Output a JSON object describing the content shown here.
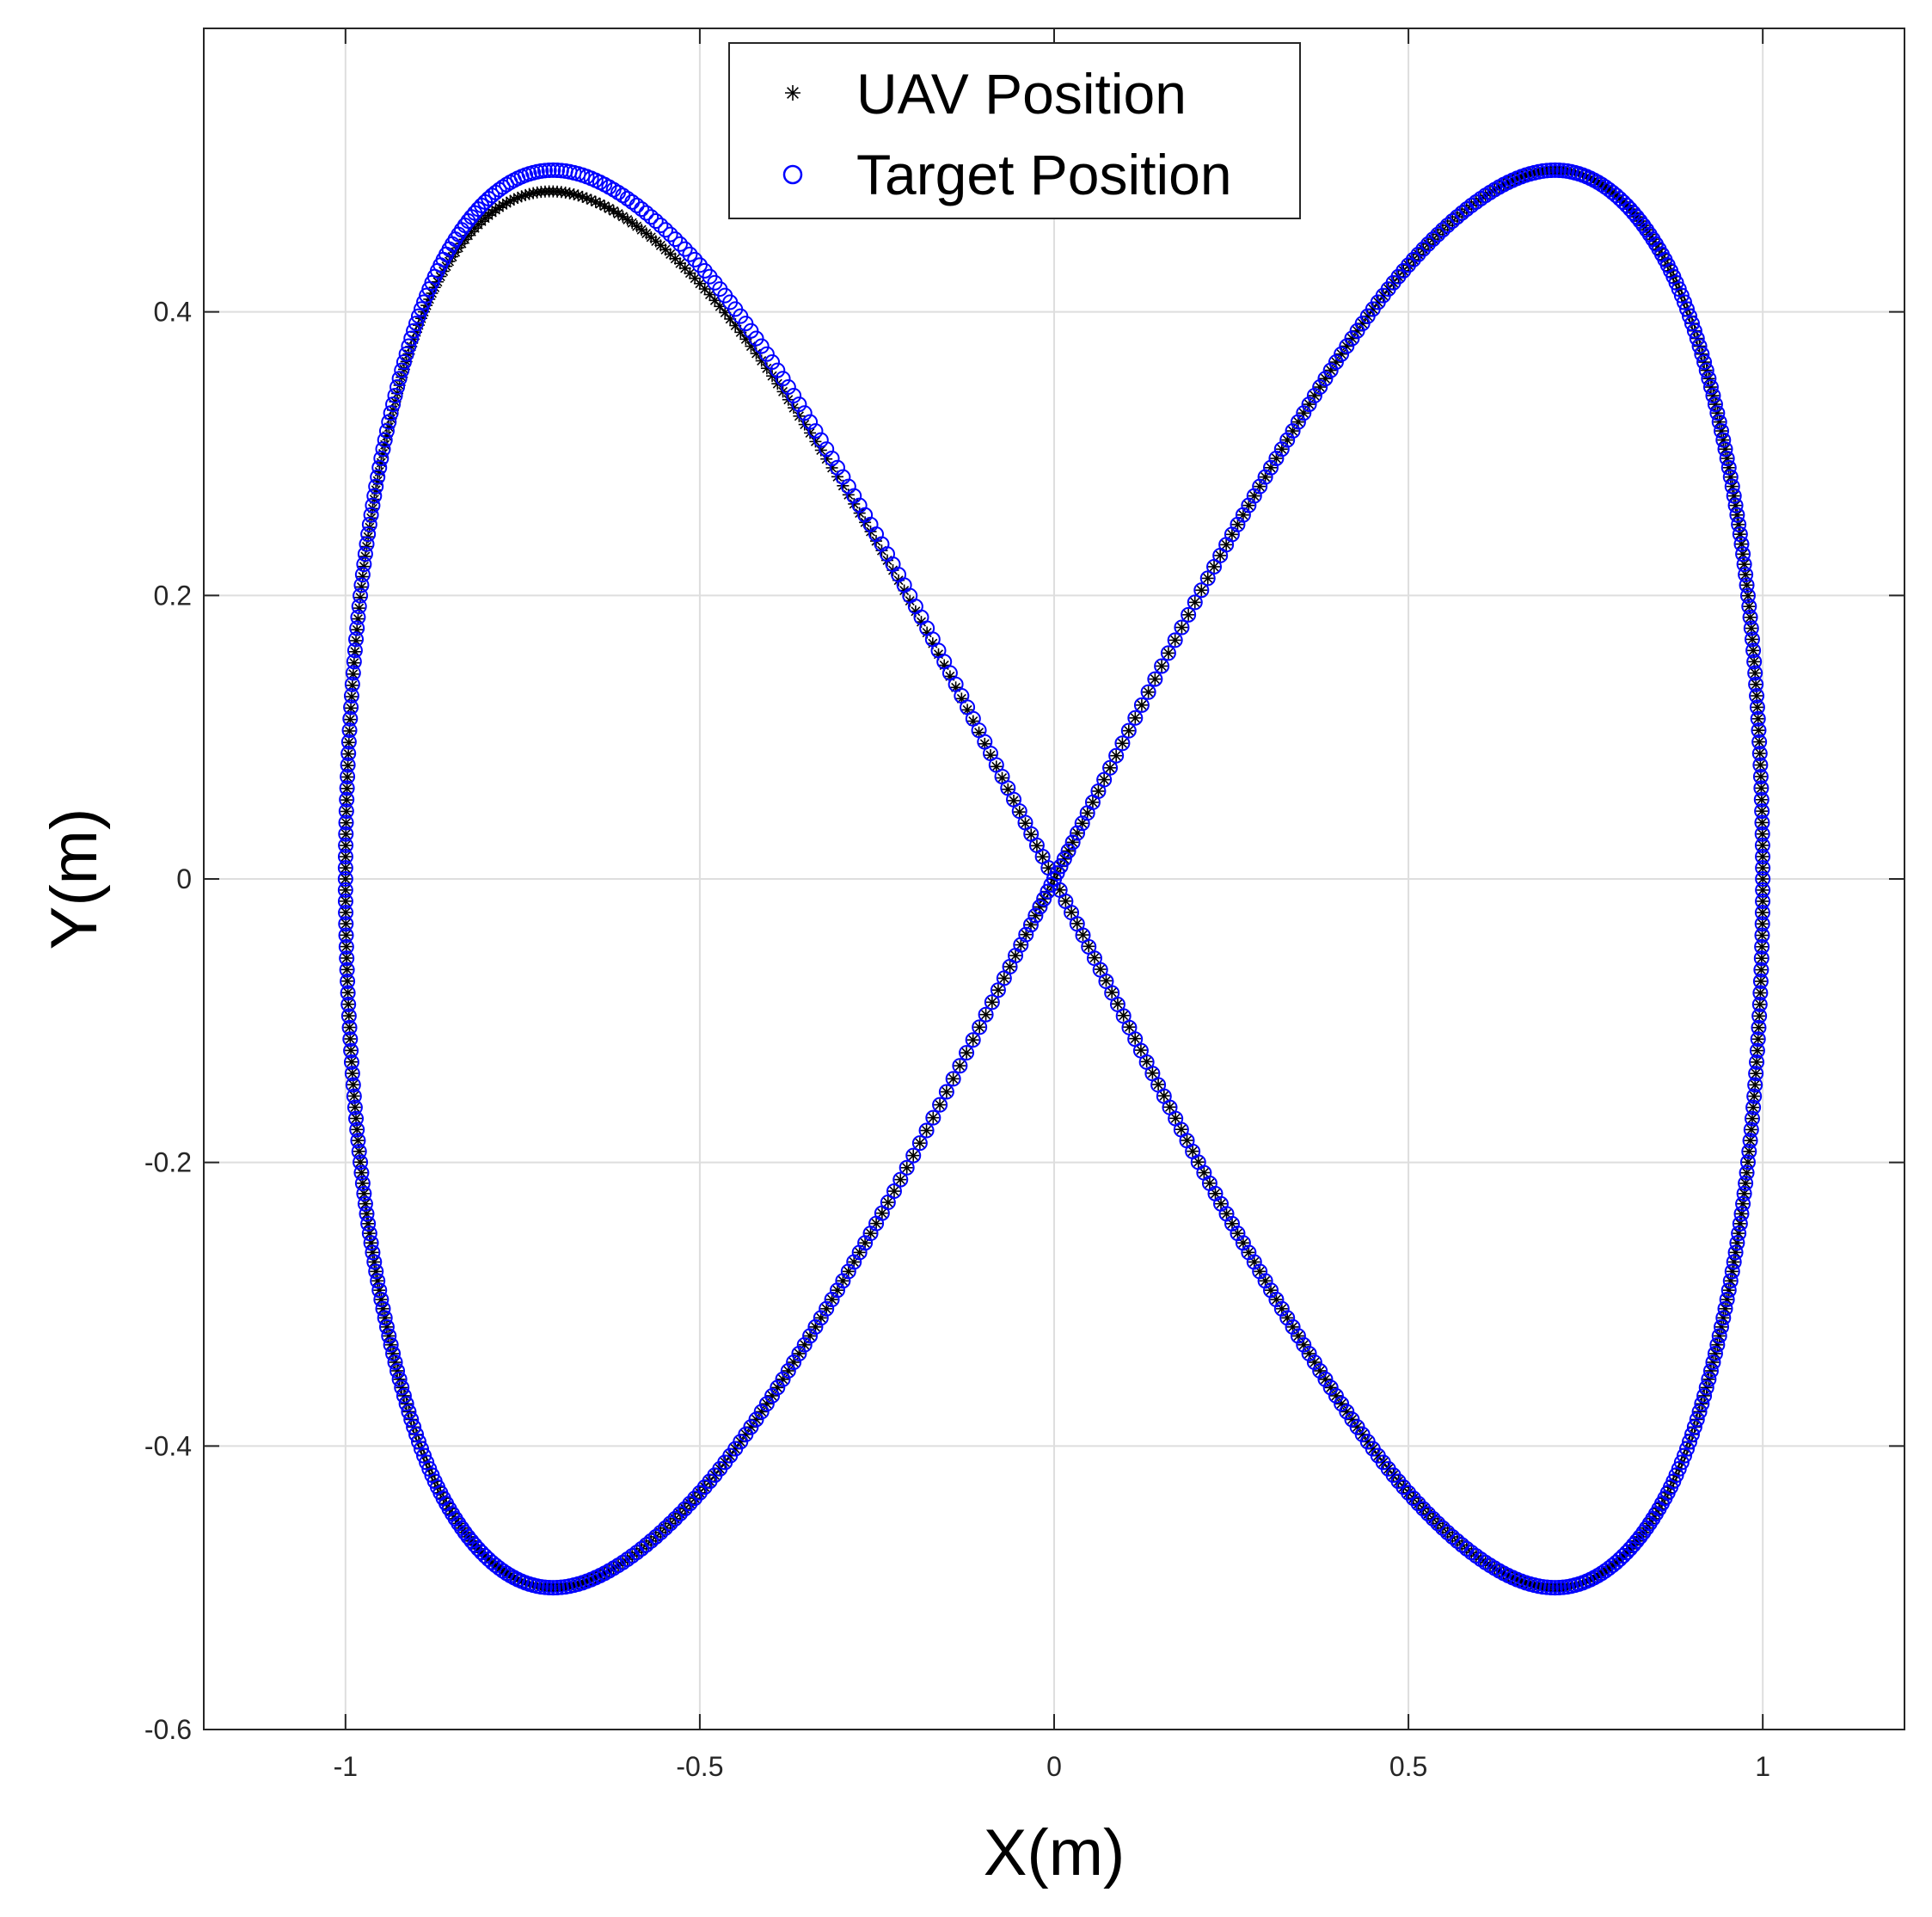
{
  "chart_data": {
    "type": "scatter",
    "xlabel": "X(m)",
    "ylabel": "Y(m)",
    "xlim": [
      -1.2,
      1.2
    ],
    "ylim": [
      -0.6,
      0.6
    ],
    "xticks": [
      -1,
      -0.5,
      0,
      0.5,
      1
    ],
    "xtick_labels": [
      "-1",
      "-0.5",
      "0",
      "0.5",
      "1"
    ],
    "yticks": [
      -0.6,
      -0.4,
      -0.2,
      0,
      0.2,
      0.4
    ],
    "ytick_labels": [
      "-0.6",
      "-0.4",
      "-0.2",
      "0",
      "0.2",
      "0.4"
    ],
    "grid": true,
    "legend_position": "top-center",
    "trajectory": "figure-eight: x = sin(t), y = sin(t)*cos(t), t in [0, 2pi]",
    "series": [
      {
        "name": "UAV Position",
        "marker": "asterisk",
        "color": "#000000",
        "points": [
          [
            0.0,
            0.0
          ],
          [
            0.259,
            0.25
          ],
          [
            0.5,
            0.433
          ],
          [
            0.707,
            0.5
          ],
          [
            0.866,
            0.433
          ],
          [
            0.966,
            0.25
          ],
          [
            1.0,
            0.0
          ],
          [
            0.966,
            -0.25
          ],
          [
            0.866,
            -0.433
          ],
          [
            0.707,
            -0.5
          ],
          [
            0.5,
            -0.433
          ],
          [
            0.259,
            -0.25
          ],
          [
            0.0,
            0.0
          ],
          [
            -0.259,
            0.245
          ],
          [
            -0.5,
            0.42
          ],
          [
            -0.707,
            0.485
          ],
          [
            -0.866,
            0.425
          ],
          [
            -0.966,
            0.248
          ],
          [
            -1.0,
            0.0
          ],
          [
            -0.966,
            -0.25
          ],
          [
            -0.866,
            -0.433
          ],
          [
            -0.707,
            -0.5
          ],
          [
            -0.5,
            -0.433
          ],
          [
            -0.259,
            -0.25
          ],
          [
            0.0,
            0.0
          ]
        ]
      },
      {
        "name": "Target Position",
        "marker": "circle",
        "color": "#0000ff",
        "points": [
          [
            0.0,
            0.0
          ],
          [
            0.259,
            0.25
          ],
          [
            0.5,
            0.433
          ],
          [
            0.707,
            0.5
          ],
          [
            0.866,
            0.433
          ],
          [
            0.966,
            0.25
          ],
          [
            1.0,
            0.0
          ],
          [
            0.966,
            -0.25
          ],
          [
            0.866,
            -0.433
          ],
          [
            0.707,
            -0.5
          ],
          [
            0.5,
            -0.433
          ],
          [
            0.259,
            -0.25
          ],
          [
            0.0,
            0.0
          ],
          [
            -0.259,
            0.25
          ],
          [
            -0.5,
            0.433
          ],
          [
            -0.707,
            0.5
          ],
          [
            -0.866,
            0.433
          ],
          [
            -0.966,
            0.25
          ],
          [
            -1.0,
            0.0
          ],
          [
            -0.966,
            -0.25
          ],
          [
            -0.866,
            -0.433
          ],
          [
            -0.707,
            -0.5
          ],
          [
            -0.5,
            -0.433
          ],
          [
            -0.259,
            -0.25
          ],
          [
            0.0,
            0.0
          ]
        ]
      }
    ]
  }
}
